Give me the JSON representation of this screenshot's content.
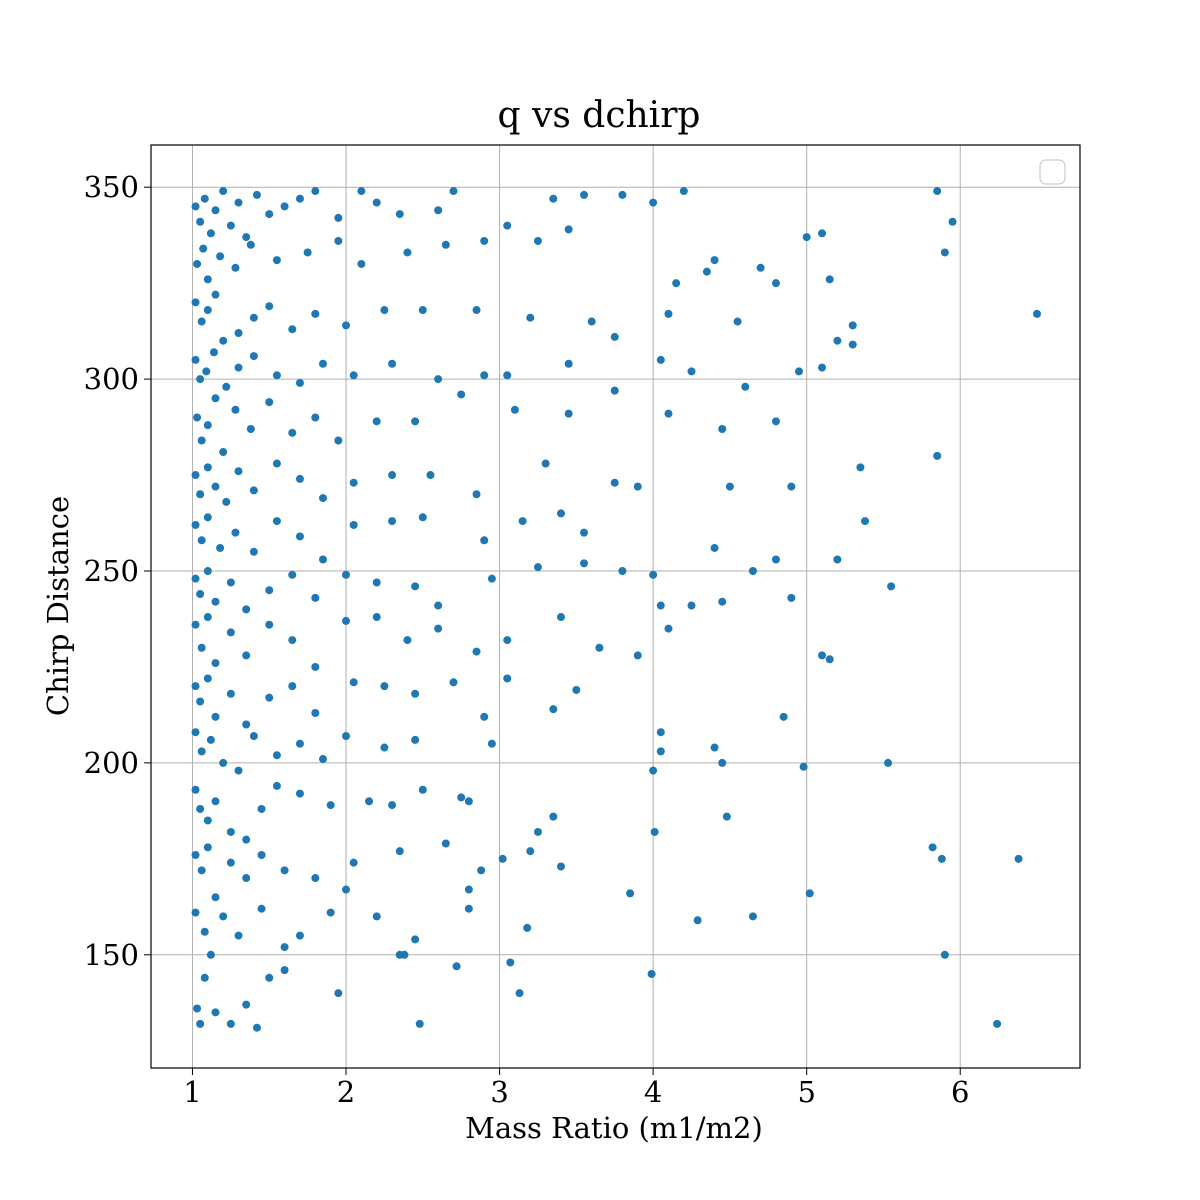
{
  "chart_data": {
    "type": "scatter",
    "title": "q vs dchirp",
    "xlabel": "Mass Ratio (m1/m2)",
    "ylabel": "Chirp Distance",
    "xlim": [
      0.73,
      6.78
    ],
    "ylim": [
      120.5,
      361
    ],
    "xticks": [
      1,
      2,
      3,
      4,
      5,
      6
    ],
    "yticks": [
      150,
      200,
      250,
      300,
      350
    ],
    "grid": true,
    "legend": "upper right (empty)",
    "marker_color": "#1f77b4",
    "series": [
      {
        "points": [
          [
            1.02,
            345
          ],
          [
            1.05,
            341
          ],
          [
            1.08,
            347
          ],
          [
            1.12,
            338
          ],
          [
            1.15,
            344
          ],
          [
            1.2,
            349
          ],
          [
            1.25,
            340
          ],
          [
            1.3,
            346
          ],
          [
            1.35,
            337
          ],
          [
            1.42,
            348
          ],
          [
            1.5,
            343
          ],
          [
            1.6,
            345
          ],
          [
            1.7,
            347
          ],
          [
            1.8,
            349
          ],
          [
            1.95,
            342
          ],
          [
            2.1,
            349
          ],
          [
            2.2,
            346
          ],
          [
            2.35,
            343
          ],
          [
            2.6,
            344
          ],
          [
            2.7,
            349
          ],
          [
            3.05,
            340
          ],
          [
            3.35,
            347
          ],
          [
            3.55,
            348
          ],
          [
            3.8,
            348
          ],
          [
            4,
            346
          ],
          [
            4.2,
            349
          ],
          [
            5.85,
            349
          ],
          [
            5.95,
            341
          ],
          [
            1.03,
            330
          ],
          [
            1.07,
            334
          ],
          [
            1.1,
            326
          ],
          [
            1.18,
            332
          ],
          [
            1.28,
            329
          ],
          [
            1.38,
            335
          ],
          [
            1.55,
            331
          ],
          [
            1.75,
            333
          ],
          [
            1.95,
            336
          ],
          [
            2.1,
            330
          ],
          [
            2.4,
            333
          ],
          [
            2.65,
            335
          ],
          [
            2.9,
            336
          ],
          [
            3.25,
            336
          ],
          [
            3.45,
            339
          ],
          [
            4.4,
            331
          ],
          [
            4.7,
            329
          ],
          [
            5,
            337
          ],
          [
            5.1,
            338
          ],
          [
            5.9,
            333
          ],
          [
            5.15,
            326
          ],
          [
            4.8,
            325
          ],
          [
            4.35,
            328
          ],
          [
            4.15,
            325
          ],
          [
            1.02,
            320
          ],
          [
            1.06,
            315
          ],
          [
            1.1,
            318
          ],
          [
            1.15,
            322
          ],
          [
            1.2,
            310
          ],
          [
            1.3,
            312
          ],
          [
            1.4,
            316
          ],
          [
            1.5,
            319
          ],
          [
            1.65,
            313
          ],
          [
            1.8,
            317
          ],
          [
            2,
            314
          ],
          [
            2.25,
            318
          ],
          [
            2.5,
            318
          ],
          [
            2.85,
            318
          ],
          [
            3.2,
            316
          ],
          [
            3.6,
            315
          ],
          [
            3.75,
            311
          ],
          [
            4.1,
            317
          ],
          [
            4.55,
            315
          ],
          [
            4.95,
            302
          ],
          [
            5.1,
            303
          ],
          [
            5.3,
            314
          ],
          [
            6.5,
            317
          ],
          [
            1.02,
            305
          ],
          [
            1.05,
            300
          ],
          [
            1.09,
            302
          ],
          [
            1.14,
            307
          ],
          [
            1.22,
            298
          ],
          [
            1.3,
            303
          ],
          [
            1.4,
            306
          ],
          [
            1.55,
            301
          ],
          [
            1.7,
            299
          ],
          [
            1.85,
            304
          ],
          [
            2.05,
            301
          ],
          [
            2.3,
            304
          ],
          [
            2.6,
            300
          ],
          [
            2.9,
            301
          ],
          [
            3.05,
            301
          ],
          [
            3.45,
            304
          ],
          [
            4.05,
            305
          ],
          [
            4.25,
            302
          ],
          [
            4.6,
            298
          ],
          [
            5.2,
            310
          ],
          [
            5.3,
            309
          ],
          [
            1.03,
            290
          ],
          [
            1.06,
            284
          ],
          [
            1.1,
            288
          ],
          [
            1.15,
            295
          ],
          [
            1.2,
            281
          ],
          [
            1.28,
            292
          ],
          [
            1.38,
            287
          ],
          [
            1.5,
            294
          ],
          [
            1.65,
            286
          ],
          [
            1.8,
            290
          ],
          [
            1.95,
            284
          ],
          [
            2.2,
            289
          ],
          [
            2.45,
            289
          ],
          [
            2.75,
            296
          ],
          [
            3.1,
            292
          ],
          [
            3.45,
            291
          ],
          [
            3.75,
            297
          ],
          [
            4.1,
            291
          ],
          [
            4.45,
            287
          ],
          [
            4.8,
            289
          ],
          [
            1.02,
            275
          ],
          [
            1.05,
            270
          ],
          [
            1.1,
            277
          ],
          [
            1.15,
            272
          ],
          [
            1.22,
            268
          ],
          [
            1.3,
            276
          ],
          [
            1.4,
            271
          ],
          [
            1.55,
            278
          ],
          [
            1.7,
            274
          ],
          [
            1.85,
            269
          ],
          [
            2.05,
            273
          ],
          [
            2.3,
            275
          ],
          [
            2.55,
            275
          ],
          [
            2.85,
            270
          ],
          [
            3.3,
            278
          ],
          [
            3.75,
            273
          ],
          [
            3.9,
            272
          ],
          [
            4.5,
            272
          ],
          [
            4.9,
            272
          ],
          [
            5.35,
            277
          ],
          [
            5.85,
            280
          ],
          [
            1.02,
            262
          ],
          [
            1.06,
            258
          ],
          [
            1.1,
            264
          ],
          [
            1.18,
            256
          ],
          [
            1.28,
            260
          ],
          [
            1.4,
            255
          ],
          [
            1.55,
            263
          ],
          [
            1.7,
            259
          ],
          [
            1.85,
            253
          ],
          [
            2.05,
            262
          ],
          [
            2.3,
            263
          ],
          [
            2.5,
            264
          ],
          [
            2.9,
            258
          ],
          [
            3.15,
            263
          ],
          [
            3.4,
            265
          ],
          [
            3.55,
            260
          ],
          [
            4.4,
            256
          ],
          [
            4.8,
            253
          ],
          [
            5.2,
            253
          ],
          [
            5.38,
            263
          ],
          [
            1.02,
            248
          ],
          [
            1.05,
            244
          ],
          [
            1.1,
            250
          ],
          [
            1.15,
            242
          ],
          [
            1.25,
            247
          ],
          [
            1.35,
            240
          ],
          [
            1.5,
            245
          ],
          [
            1.65,
            249
          ],
          [
            1.8,
            243
          ],
          [
            2,
            249
          ],
          [
            2.2,
            247
          ],
          [
            2.45,
            246
          ],
          [
            2.6,
            241
          ],
          [
            2.95,
            248
          ],
          [
            3.25,
            251
          ],
          [
            3.55,
            252
          ],
          [
            3.8,
            250
          ],
          [
            4,
            249
          ],
          [
            4.05,
            241
          ],
          [
            4.25,
            241
          ],
          [
            4.45,
            242
          ],
          [
            4.65,
            250
          ],
          [
            4.9,
            243
          ],
          [
            5.55,
            246
          ],
          [
            1.02,
            236
          ],
          [
            1.06,
            230
          ],
          [
            1.1,
            238
          ],
          [
            1.15,
            226
          ],
          [
            1.25,
            234
          ],
          [
            1.35,
            228
          ],
          [
            1.5,
            236
          ],
          [
            1.65,
            232
          ],
          [
            1.8,
            225
          ],
          [
            2,
            237
          ],
          [
            2.2,
            238
          ],
          [
            2.4,
            232
          ],
          [
            2.6,
            235
          ],
          [
            2.85,
            229
          ],
          [
            3.05,
            232
          ],
          [
            3.4,
            238
          ],
          [
            3.65,
            230
          ],
          [
            4.1,
            235
          ],
          [
            5.1,
            228
          ],
          [
            5.15,
            227
          ],
          [
            1.02,
            220
          ],
          [
            1.05,
            216
          ],
          [
            1.1,
            222
          ],
          [
            1.15,
            212
          ],
          [
            1.25,
            218
          ],
          [
            1.35,
            210
          ],
          [
            1.5,
            217
          ],
          [
            1.65,
            220
          ],
          [
            1.8,
            213
          ],
          [
            2.05,
            221
          ],
          [
            2.25,
            220
          ],
          [
            2.45,
            218
          ],
          [
            2.7,
            221
          ],
          [
            2.9,
            212
          ],
          [
            3.05,
            222
          ],
          [
            3.35,
            214
          ],
          [
            3.5,
            219
          ],
          [
            3.9,
            228
          ],
          [
            4.05,
            203
          ],
          [
            4.4,
            204
          ],
          [
            1.02,
            208
          ],
          [
            1.06,
            203
          ],
          [
            1.12,
            206
          ],
          [
            1.2,
            200
          ],
          [
            1.3,
            198
          ],
          [
            1.4,
            207
          ],
          [
            1.55,
            202
          ],
          [
            1.7,
            205
          ],
          [
            1.85,
            201
          ],
          [
            2,
            207
          ],
          [
            2.25,
            204
          ],
          [
            2.45,
            206
          ],
          [
            2.95,
            205
          ],
          [
            4,
            198
          ],
          [
            4.05,
            208
          ],
          [
            4.45,
            200
          ],
          [
            4.85,
            212
          ],
          [
            4.98,
            199
          ],
          [
            5.53,
            200
          ],
          [
            1.02,
            193
          ],
          [
            1.05,
            188
          ],
          [
            1.1,
            185
          ],
          [
            1.15,
            190
          ],
          [
            1.25,
            182
          ],
          [
            1.35,
            180
          ],
          [
            1.45,
            188
          ],
          [
            1.55,
            194
          ],
          [
            1.7,
            192
          ],
          [
            1.9,
            189
          ],
          [
            2.15,
            190
          ],
          [
            2.3,
            189
          ],
          [
            2.5,
            193
          ],
          [
            2.75,
            191
          ],
          [
            2.8,
            190
          ],
          [
            3.35,
            186
          ],
          [
            4.48,
            186
          ],
          [
            1.02,
            176
          ],
          [
            1.06,
            172
          ],
          [
            1.1,
            178
          ],
          [
            1.15,
            165
          ],
          [
            1.25,
            174
          ],
          [
            1.35,
            170
          ],
          [
            1.45,
            176
          ],
          [
            1.6,
            172
          ],
          [
            1.8,
            170
          ],
          [
            2.05,
            174
          ],
          [
            2.35,
            177
          ],
          [
            2.65,
            179
          ],
          [
            2.8,
            167
          ],
          [
            3.02,
            175
          ],
          [
            3.2,
            177
          ],
          [
            3.25,
            182
          ],
          [
            3.4,
            173
          ],
          [
            4.01,
            182
          ],
          [
            5.82,
            178
          ],
          [
            5.88,
            175
          ],
          [
            6.38,
            175
          ],
          [
            1.02,
            161
          ],
          [
            1.08,
            156
          ],
          [
            1.12,
            150
          ],
          [
            1.2,
            160
          ],
          [
            1.3,
            155
          ],
          [
            1.45,
            162
          ],
          [
            1.6,
            152
          ],
          [
            1.7,
            155
          ],
          [
            1.9,
            161
          ],
          [
            2,
            167
          ],
          [
            2.2,
            160
          ],
          [
            2.35,
            150
          ],
          [
            2.45,
            154
          ],
          [
            2.8,
            162
          ],
          [
            2.88,
            172
          ],
          [
            3.07,
            148
          ],
          [
            3.18,
            157
          ],
          [
            3.85,
            166
          ],
          [
            4.29,
            159
          ],
          [
            4.65,
            160
          ],
          [
            5.02,
            166
          ],
          [
            5.9,
            150
          ],
          [
            1.03,
            136
          ],
          [
            1.05,
            132
          ],
          [
            1.08,
            144
          ],
          [
            1.15,
            135
          ],
          [
            1.25,
            132
          ],
          [
            1.35,
            137
          ],
          [
            1.42,
            131
          ],
          [
            1.5,
            144
          ],
          [
            1.6,
            146
          ],
          [
            1.95,
            140
          ],
          [
            2.38,
            150
          ],
          [
            2.48,
            132
          ],
          [
            2.72,
            147
          ],
          [
            3.13,
            140
          ],
          [
            3.99,
            145
          ],
          [
            6.24,
            132
          ]
        ]
      }
    ]
  }
}
